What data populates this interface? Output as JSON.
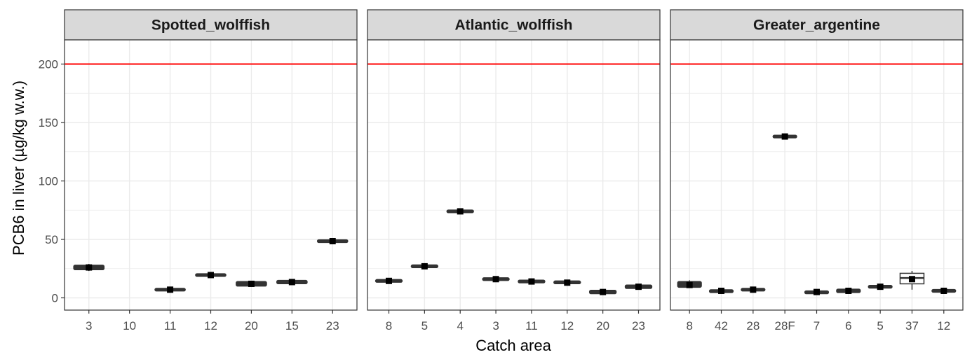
{
  "chart_data": {
    "type": "boxplot",
    "xlabel": "Catch area",
    "ylabel": "PCB6 in liver (µg/kg w.w.)",
    "ylim": [
      -10,
      220
    ],
    "yticks": [
      0,
      50,
      100,
      150,
      200
    ],
    "reference_line": {
      "y": 200,
      "color": "#ff0000"
    },
    "grid": true,
    "panels": [
      {
        "name": "Spotted_wolffish",
        "categories": [
          "3",
          "10",
          "11",
          "12",
          "20",
          "15",
          "23"
        ],
        "boxes": [
          {
            "q1": 24,
            "median": 25.5,
            "q3": 28,
            "min": 23,
            "max": 29,
            "mean": 26
          },
          null,
          {
            "q1": 6.5,
            "median": 7,
            "q3": 7.5,
            "min": 6.5,
            "max": 7.5,
            "mean": 7
          },
          {
            "q1": 18.5,
            "median": 19.5,
            "q3": 20.5,
            "min": 18.5,
            "max": 20.5,
            "mean": 19.5
          },
          {
            "q1": 10,
            "median": 12,
            "q3": 14,
            "min": 10,
            "max": 14,
            "mean": 12
          },
          {
            "q1": 12,
            "median": 13.5,
            "q3": 15,
            "min": 12,
            "max": 15,
            "mean": 13.5
          },
          {
            "q1": 48,
            "median": 48.5,
            "q3": 49,
            "min": 48,
            "max": 49,
            "mean": 48.5
          }
        ]
      },
      {
        "name": "Atlantic_wolffish",
        "categories": [
          "8",
          "5",
          "4",
          "3",
          "11",
          "12",
          "20",
          "23"
        ],
        "boxes": [
          {
            "q1": 13.5,
            "median": 14.5,
            "q3": 15.5,
            "min": 13.5,
            "max": 15.5,
            "mean": 14.5
          },
          {
            "q1": 26,
            "median": 27,
            "q3": 28,
            "min": 26,
            "max": 28,
            "mean": 27
          },
          {
            "q1": 73.5,
            "median": 74,
            "q3": 74.5,
            "min": 73.5,
            "max": 74.5,
            "mean": 74
          },
          {
            "q1": 15,
            "median": 16,
            "q3": 17,
            "min": 15,
            "max": 17,
            "mean": 16
          },
          {
            "q1": 13,
            "median": 14,
            "q3": 15,
            "min": 13,
            "max": 15,
            "mean": 14
          },
          {
            "q1": 12,
            "median": 13,
            "q3": 14.5,
            "min": 12,
            "max": 14.5,
            "mean": 13
          },
          {
            "q1": 3.5,
            "median": 5,
            "q3": 6.5,
            "min": 3.5,
            "max": 6.5,
            "mean": 5
          },
          {
            "q1": 8,
            "median": 9.5,
            "q3": 11,
            "min": 8,
            "max": 11,
            "mean": 9.5
          }
        ]
      },
      {
        "name": "Greater_argentine",
        "categories": [
          "8",
          "42",
          "28",
          "28F",
          "7",
          "6",
          "5",
          "37",
          "12"
        ],
        "boxes": [
          {
            "q1": 9,
            "median": 11,
            "q3": 14,
            "min": 9,
            "max": 15,
            "mean": 11
          },
          {
            "q1": 4.5,
            "median": 6,
            "q3": 7,
            "min": 4.5,
            "max": 7,
            "mean": 6
          },
          {
            "q1": 6,
            "median": 7,
            "q3": 8,
            "min": 6,
            "max": 8,
            "mean": 7
          },
          {
            "q1": 137,
            "median": 138,
            "q3": 139,
            "min": 137,
            "max": 139,
            "mean": 138
          },
          {
            "q1": 3.5,
            "median": 5,
            "q3": 6,
            "min": 3.5,
            "max": 6,
            "mean": 5
          },
          {
            "q1": 4.5,
            "median": 6,
            "q3": 7.5,
            "min": 4.5,
            "max": 7.5,
            "mean": 6
          },
          {
            "q1": 8.5,
            "median": 9.5,
            "q3": 10.5,
            "min": 8.5,
            "max": 10.5,
            "mean": 9.5
          },
          {
            "q1": 12,
            "median": 17,
            "q3": 21,
            "min": 7,
            "max": 23,
            "mean": 16,
            "outlined": true
          },
          {
            "q1": 5,
            "median": 6,
            "q3": 7,
            "min": 5,
            "max": 7,
            "mean": 6
          }
        ]
      }
    ]
  }
}
